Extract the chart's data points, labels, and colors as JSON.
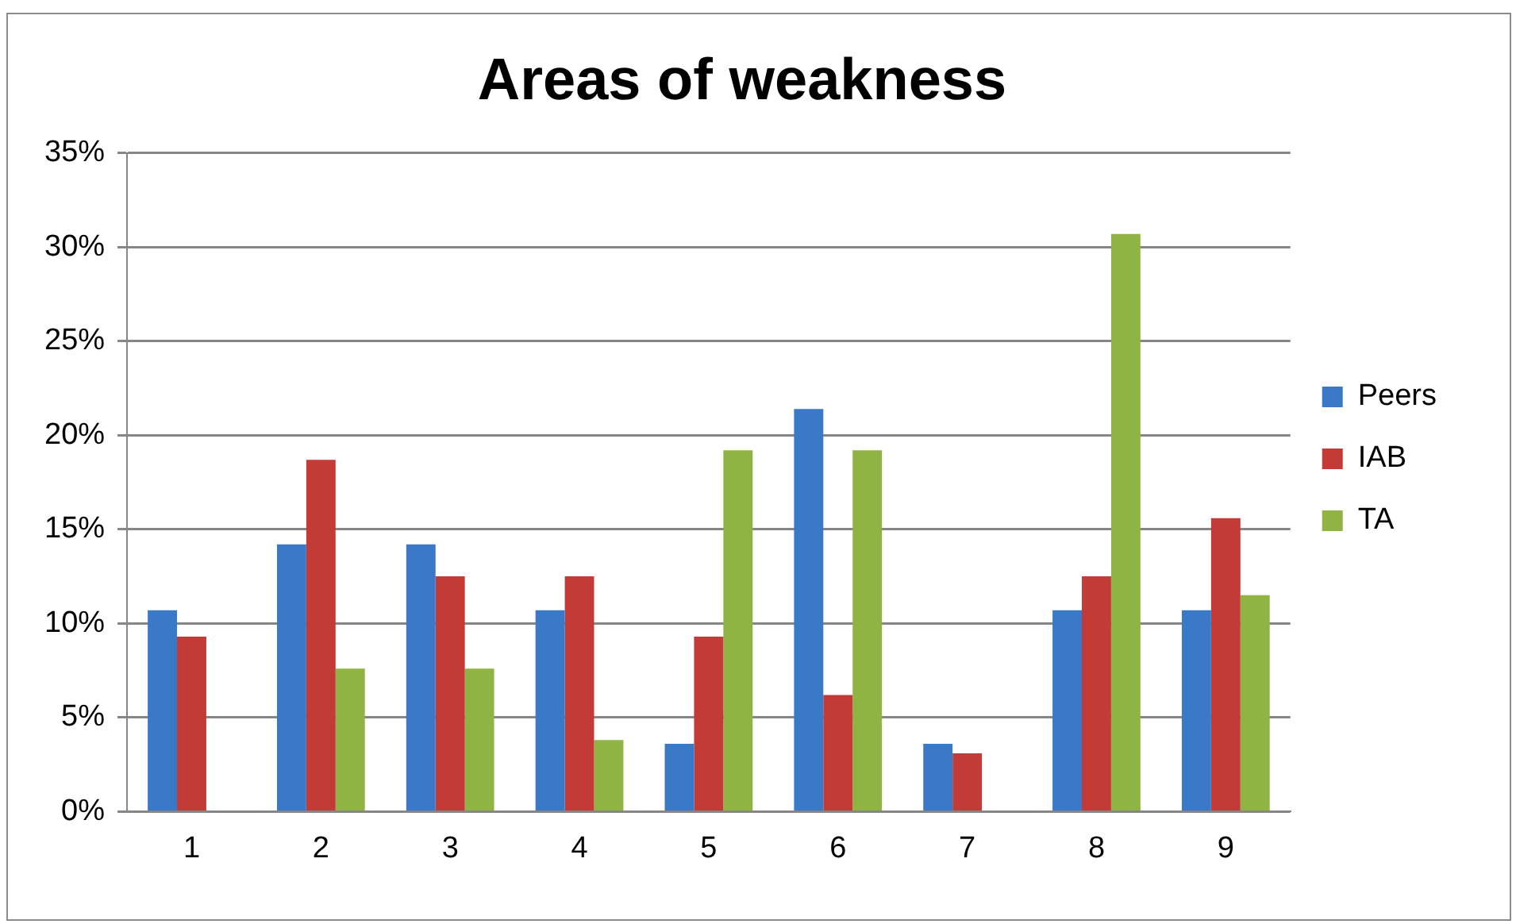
{
  "chart_data": {
    "type": "bar",
    "title": "Areas of weakness",
    "categories": [
      "1",
      "2",
      "3",
      "4",
      "5",
      "6",
      "7",
      "8",
      "9"
    ],
    "series": [
      {
        "name": "Peers",
        "color": "#3a78c8",
        "values": [
          10.7,
          14.2,
          14.2,
          10.7,
          3.6,
          21.4,
          3.6,
          10.7,
          10.7
        ]
      },
      {
        "name": "IAB",
        "color": "#c23b37",
        "values": [
          9.3,
          18.7,
          12.5,
          12.5,
          9.3,
          6.2,
          3.1,
          12.5,
          15.6
        ]
      },
      {
        "name": "TA",
        "color": "#8fb443",
        "values": [
          0,
          7.6,
          7.6,
          3.8,
          19.2,
          19.2,
          0,
          30.7,
          11.5
        ]
      }
    ],
    "ylim": [
      0,
      35
    ],
    "yticks": [
      {
        "value": 0,
        "label": "0%"
      },
      {
        "value": 5,
        "label": "5%"
      },
      {
        "value": 10,
        "label": "10%"
      },
      {
        "value": 15,
        "label": "15%"
      },
      {
        "value": 20,
        "label": "20%"
      },
      {
        "value": 25,
        "label": "25%"
      },
      {
        "value": 30,
        "label": "30%"
      },
      {
        "value": 35,
        "label": "35%"
      }
    ],
    "grid": "y",
    "legend": "right"
  }
}
